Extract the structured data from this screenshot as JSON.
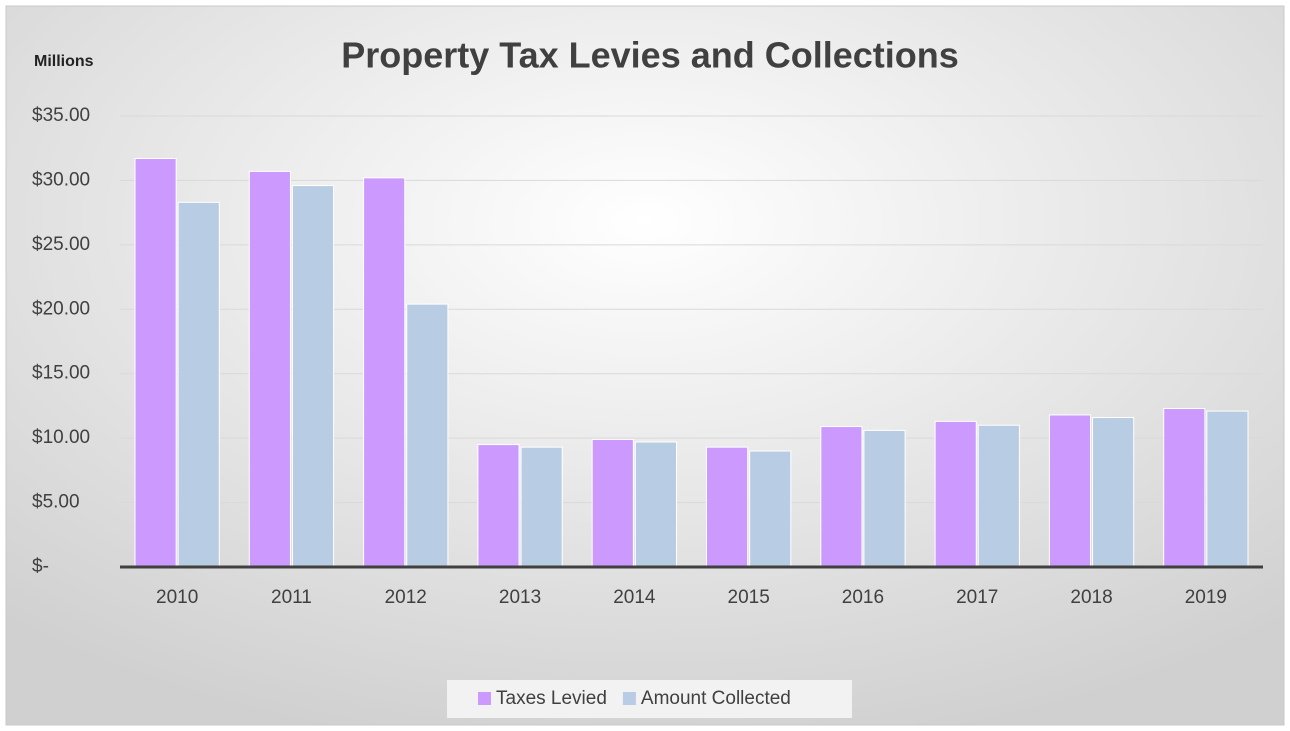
{
  "chart_data": {
    "type": "bar",
    "title": "Property Tax Levies and Collections",
    "y_label": "Millions",
    "categories": [
      "2010",
      "2011",
      "2012",
      "2013",
      "2014",
      "2015",
      "2016",
      "2017",
      "2018",
      "2019"
    ],
    "series": [
      {
        "name": "Taxes Levied",
        "color": "#cc99ff",
        "values": [
          31.7,
          30.7,
          30.2,
          9.5,
          9.9,
          9.3,
          10.9,
          11.3,
          11.8,
          12.3
        ]
      },
      {
        "name": "Amount Collected",
        "color": "#b8cce4",
        "values": [
          28.3,
          29.6,
          20.4,
          9.3,
          9.7,
          9.0,
          10.6,
          11.0,
          11.6,
          12.1
        ]
      }
    ],
    "ylim": [
      0,
      35
    ],
    "yticks": [
      {
        "value": 0,
        "label": "$-"
      },
      {
        "value": 5,
        "label": "$5.00"
      },
      {
        "value": 10,
        "label": "$10.00"
      },
      {
        "value": 15,
        "label": "$15.00"
      },
      {
        "value": 20,
        "label": "$20.00"
      },
      {
        "value": 25,
        "label": "$25.00"
      },
      {
        "value": 30,
        "label": "$30.00"
      },
      {
        "value": 35,
        "label": "$35.00"
      }
    ],
    "grid": true,
    "legend": "bottom"
  }
}
